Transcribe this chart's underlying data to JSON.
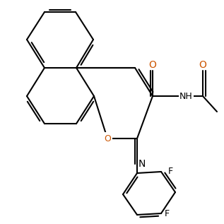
{
  "figsize": [
    3.17,
    3.17
  ],
  "dpi": 100,
  "bg": "#ffffff",
  "lw": 1.5,
  "lw2": 1.5,
  "bond_color": "#000000",
  "O_color": "#cc5500",
  "N_color": "#000000",
  "F_color": "#000000",
  "font_size": 9,
  "xlim": [
    0,
    317
  ],
  "ylim": [
    0,
    317
  ]
}
